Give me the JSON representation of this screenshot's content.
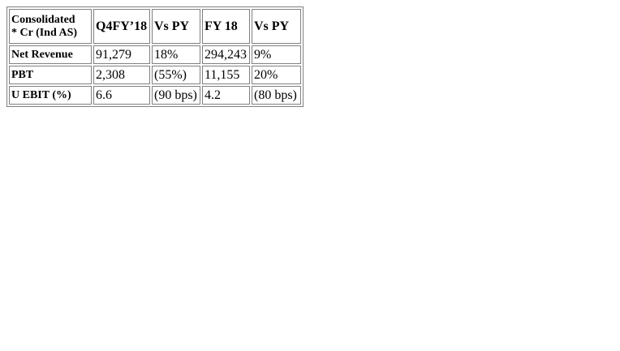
{
  "table": {
    "header": {
      "label_line1": "Consolidated",
      "label_line2": "* Cr (Ind AS)",
      "columns": [
        "Q4FY’18",
        "Vs PY",
        "FY 18",
        "Vs PY"
      ]
    },
    "rows": [
      {
        "label": "Net Revenue",
        "values": [
          "91,279",
          "18%",
          "294,243",
          "9%"
        ]
      },
      {
        "label": "PBT",
        "values": [
          "2,308",
          "(55%)",
          "11,155",
          "20%"
        ]
      },
      {
        "label": "U EBIT (%)",
        "values": [
          "6.6",
          "(90 bps)",
          "4.2",
          "(80 bps)"
        ]
      }
    ]
  }
}
